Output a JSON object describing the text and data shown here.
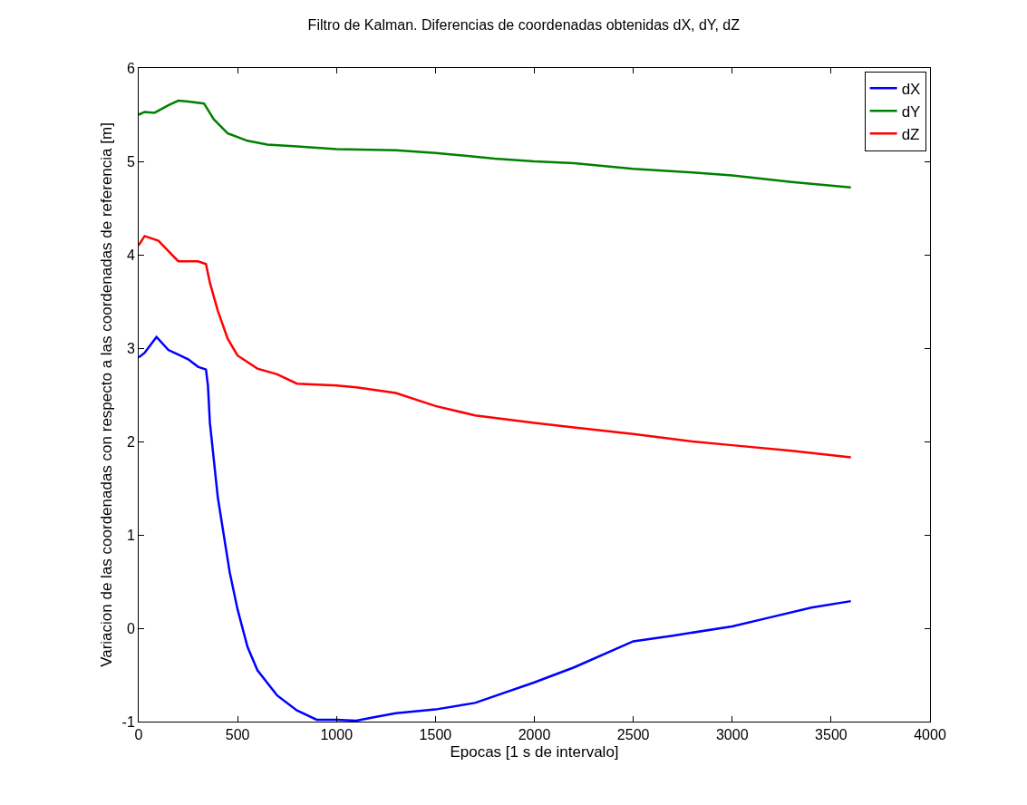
{
  "chart_data": {
    "type": "line",
    "title": "Filtro de Kalman. Diferencias de coordenadas obtenidas dX, dY, dZ",
    "xlabel": "Epocas [1 s de intervalo]",
    "ylabel": "Variacion de las coordenadas con respecto a las coordenadas de referencia [m]",
    "xlim": [
      0,
      4000
    ],
    "xticks": [
      0,
      500,
      1000,
      1500,
      2000,
      2500,
      3000,
      3500,
      4000
    ],
    "ylim": [
      -1,
      6
    ],
    "yticks": [
      -1,
      0,
      1,
      2,
      3,
      4,
      5,
      6
    ],
    "grid": false,
    "legend": "top right",
    "line_style": "solid",
    "marker": "none",
    "series": [
      {
        "name": "dX",
        "color": "#0000ff",
        "x": [
          0,
          30,
          90,
          150,
          200,
          250,
          300,
          340,
          350,
          360,
          380,
          400,
          430,
          460,
          500,
          550,
          600,
          700,
          800,
          900,
          1000,
          1100,
          1200,
          1300,
          1500,
          1700,
          2000,
          2200,
          2500,
          2700,
          3000,
          3200,
          3400,
          3600
        ],
        "values": [
          2.9,
          2.95,
          3.12,
          2.98,
          2.93,
          2.88,
          2.8,
          2.77,
          2.6,
          2.2,
          1.8,
          1.4,
          1.0,
          0.6,
          0.2,
          -0.2,
          -0.45,
          -0.72,
          -0.88,
          -0.98,
          -0.98,
          -0.99,
          -0.95,
          -0.91,
          -0.87,
          -0.8,
          -0.58,
          -0.42,
          -0.14,
          -0.08,
          0.02,
          0.12,
          0.22,
          0.29
        ]
      },
      {
        "name": "dY",
        "color": "#008000",
        "x": [
          0,
          30,
          80,
          150,
          200,
          250,
          330,
          380,
          450,
          550,
          650,
          800,
          1000,
          1300,
          1500,
          1800,
          2000,
          2200,
          2500,
          2800,
          3000,
          3300,
          3600
        ],
        "values": [
          5.5,
          5.53,
          5.52,
          5.6,
          5.65,
          5.64,
          5.62,
          5.45,
          5.3,
          5.22,
          5.18,
          5.16,
          5.13,
          5.12,
          5.09,
          5.03,
          5.0,
          4.98,
          4.92,
          4.88,
          4.85,
          4.78,
          4.72
        ]
      },
      {
        "name": "dZ",
        "color": "#ff0000",
        "x": [
          0,
          30,
          100,
          200,
          300,
          340,
          360,
          400,
          450,
          500,
          600,
          700,
          800,
          1000,
          1100,
          1300,
          1500,
          1700,
          2000,
          2200,
          2500,
          2800,
          3000,
          3300,
          3600
        ],
        "values": [
          4.1,
          4.2,
          4.15,
          3.93,
          3.93,
          3.9,
          3.7,
          3.4,
          3.1,
          2.92,
          2.78,
          2.72,
          2.62,
          2.6,
          2.58,
          2.52,
          2.38,
          2.28,
          2.2,
          2.15,
          2.08,
          2.0,
          1.96,
          1.9,
          1.83
        ]
      }
    ]
  }
}
